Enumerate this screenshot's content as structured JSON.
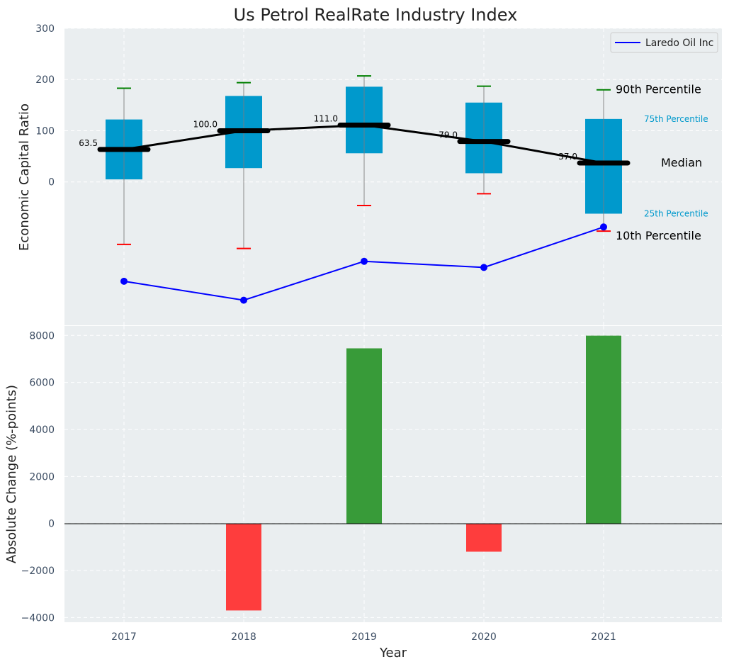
{
  "chart_data": {
    "type": "box",
    "title": "Us Petrol RealRate Industry Index",
    "xlabel": "Year",
    "categories": [
      "2017",
      "2018",
      "2019",
      "2020",
      "2021"
    ],
    "top_panel": {
      "ylabel": "Economic Capital Ratio",
      "ylim": [
        -280,
        300
      ],
      "yticks": [
        0,
        100,
        200,
        300
      ],
      "grid": true,
      "legend": {
        "position": "top-right",
        "entries": [
          "Laredo Oil Inc"
        ]
      },
      "percentiles": {
        "p10": [
          -122,
          -130,
          -46,
          -23,
          -96
        ],
        "p25": [
          5,
          27,
          56,
          17,
          -62
        ],
        "median": [
          63.5,
          100.0,
          111.0,
          79.0,
          37.0
        ],
        "p75": [
          122,
          168,
          186,
          155,
          123
        ],
        "p90": [
          183,
          194,
          207,
          187,
          180
        ]
      },
      "median_labels": [
        "63.5",
        "100.0",
        "111.0",
        "79.0",
        "37.0"
      ],
      "company_series": {
        "name": "Laredo Oil Inc",
        "values": [
          -194,
          -231,
          -155,
          -167,
          -88
        ]
      },
      "annotations": {
        "p90": "90th Percentile",
        "p75": "75th Percentile",
        "median": "Median",
        "p25": "25th Percentile",
        "p10": "10th Percentile"
      }
    },
    "bottom_panel": {
      "type": "bar",
      "ylabel": "Absolute Change (%-points)",
      "ylim": [
        -4200,
        8400
      ],
      "yticks": [
        -4000,
        -2000,
        0,
        2000,
        4000,
        6000,
        8000
      ],
      "values": [
        0,
        -3700,
        7450,
        -1200,
        7990
      ],
      "grid": true
    },
    "colors": {
      "panel_bg": "#eaeef0",
      "box": "#0099cc",
      "median_line": "#000000",
      "company_line": "#0000ff",
      "whisker_top": "#008000",
      "whisker_bottom": "#ff0000",
      "bar_positive": "#2e962e",
      "bar_negative": "#ff3333",
      "tick_text": "#3c4d63",
      "annotation_small": "#0099cc"
    }
  }
}
